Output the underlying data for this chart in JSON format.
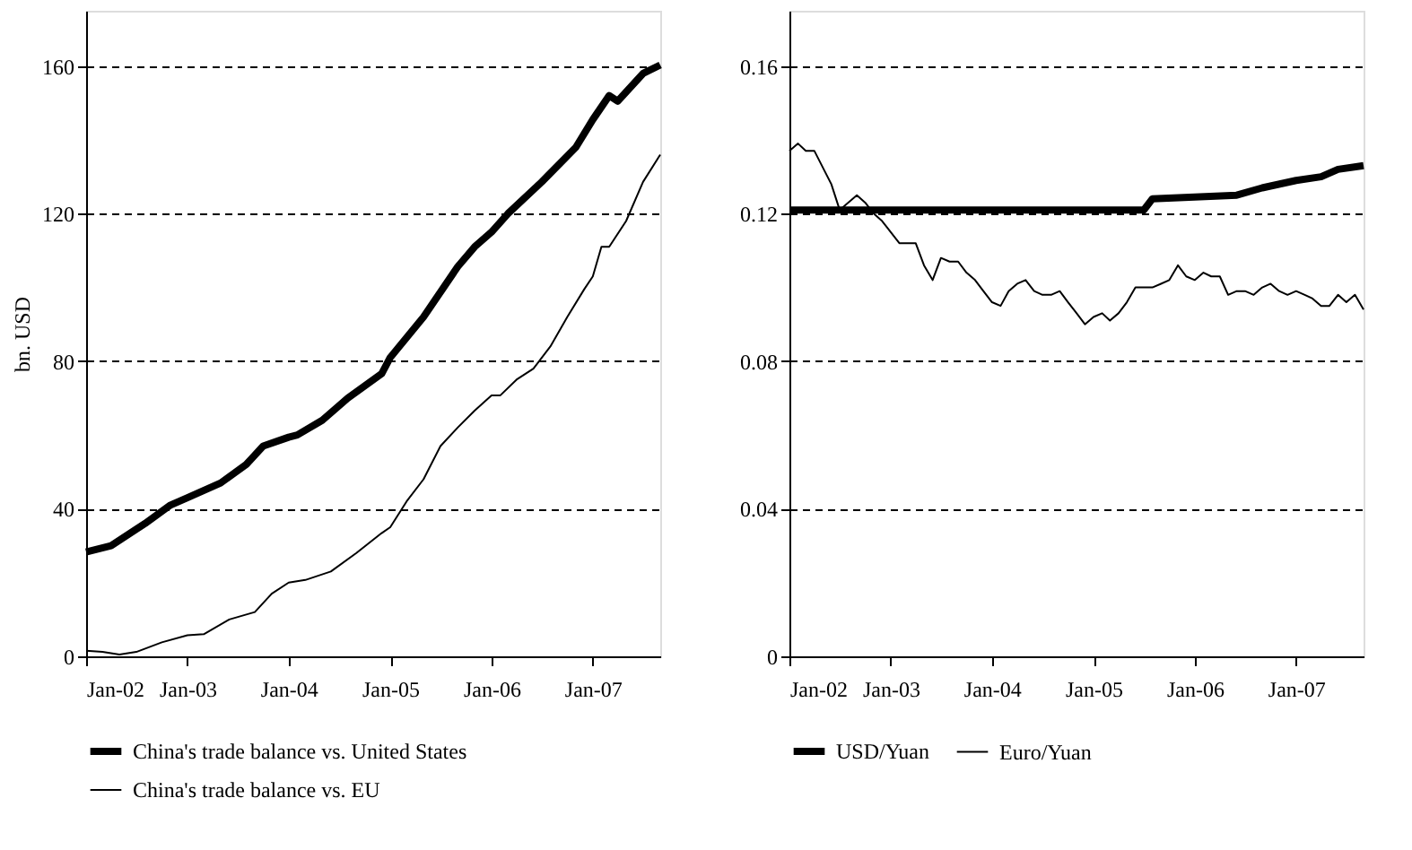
{
  "chart_data": [
    {
      "type": "line",
      "ylabel": "bn. USD",
      "xlim": [
        "2002-01",
        "2007-09"
      ],
      "ylim": [
        0,
        175
      ],
      "yticks": [
        0,
        40,
        80,
        120,
        160
      ],
      "xticks": [
        {
          "value": "2002-01",
          "label": "Jan-02"
        },
        {
          "value": "2003-01",
          "label": "Jan-03"
        },
        {
          "value": "2004-01",
          "label": "Jan-04"
        },
        {
          "value": "2005-01",
          "label": "Jan-05"
        },
        {
          "value": "2006-01",
          "label": "Jan-06"
        },
        {
          "value": "2007-01",
          "label": "Jan-07"
        }
      ],
      "grid": "y",
      "legend": "bottom",
      "line_style": "solid",
      "marker": "none",
      "series": [
        {
          "name": "China's trade balance vs. United States",
          "color": "#000000",
          "x": [
            "2002-01",
            "2002-04",
            "2002-08",
            "2002-11",
            "2003-01",
            "2003-05",
            "2003-08",
            "2003-10",
            "2004-01",
            "2004-02",
            "2004-05",
            "2004-08",
            "2004-12",
            "2005-01",
            "2005-05",
            "2005-09",
            "2005-11",
            "2006-01",
            "2006-03",
            "2006-07",
            "2006-11",
            "2007-01",
            "2007-03",
            "2007-04",
            "2007-07",
            "2007-09"
          ],
          "values": [
            28.3,
            30,
            36,
            41,
            43,
            47,
            52,
            57,
            59.4,
            60,
            64,
            70,
            76.6,
            81,
            92,
            105.6,
            111,
            115,
            120,
            128.6,
            138,
            145.5,
            152,
            150.5,
            158,
            160.3
          ]
        },
        {
          "name": "China's trade balance vs. EU",
          "color": "#000000",
          "x": [
            "2002-01",
            "2002-03",
            "2002-05",
            "2002-07",
            "2002-10",
            "2003-01",
            "2003-03",
            "2003-06",
            "2003-09",
            "2003-11",
            "2004-01",
            "2004-03",
            "2004-06",
            "2004-09",
            "2004-12",
            "2005-01",
            "2005-03",
            "2005-05",
            "2005-07",
            "2005-09",
            "2005-11",
            "2006-01",
            "2006-02",
            "2006-04",
            "2006-06",
            "2006-08",
            "2006-10",
            "2006-12",
            "2007-01",
            "2007-02",
            "2007-03",
            "2007-05",
            "2007-07",
            "2007-09"
          ],
          "values": [
            1.5,
            1.2,
            0.5,
            1.2,
            3.8,
            5.7,
            6,
            10,
            12,
            17,
            20,
            20.7,
            23,
            28,
            33.4,
            35,
            42,
            48,
            57,
            62,
            66.6,
            70.7,
            70.7,
            75,
            78,
            84,
            92,
            99.5,
            103,
            111,
            111,
            118,
            128.6,
            136
          ]
        }
      ]
    },
    {
      "type": "line",
      "xlim": [
        "2002-01",
        "2007-09"
      ],
      "ylim": [
        0,
        0.175
      ],
      "yticks": [
        0,
        0.04,
        0.08,
        0.12,
        0.16
      ],
      "xticks": [
        {
          "value": "2002-01",
          "label": "Jan-02"
        },
        {
          "value": "2003-01",
          "label": "Jan-03"
        },
        {
          "value": "2004-01",
          "label": "Jan-04"
        },
        {
          "value": "2005-01",
          "label": "Jan-05"
        },
        {
          "value": "2006-01",
          "label": "Jan-06"
        },
        {
          "value": "2007-01",
          "label": "Jan-07"
        }
      ],
      "grid": "y",
      "legend": "bottom",
      "line_style": "solid",
      "marker": "none",
      "series": [
        {
          "name": "USD/Yuan",
          "color": "#000000",
          "x": [
            "2002-01",
            "2005-07",
            "2005-08",
            "2006-06",
            "2006-09",
            "2007-01",
            "2007-04",
            "2007-06",
            "2007-09"
          ],
          "values": [
            0.121,
            0.121,
            0.124,
            0.125,
            0.127,
            0.129,
            0.13,
            0.132,
            0.133
          ]
        },
        {
          "name": "Euro/Yuan",
          "color": "#000000",
          "x": [
            "2002-01",
            "2002-02",
            "2002-03",
            "2002-04",
            "2002-06",
            "2002-07",
            "2002-08",
            "2002-09",
            "2002-10",
            "2002-11",
            "2002-12",
            "2003-01",
            "2003-02",
            "2003-04",
            "2003-05",
            "2003-06",
            "2003-07",
            "2003-08",
            "2003-09",
            "2003-10",
            "2003-11",
            "2003-12",
            "2004-01",
            "2004-02",
            "2004-03",
            "2004-04",
            "2004-05",
            "2004-06",
            "2004-07",
            "2004-08",
            "2004-09",
            "2004-10",
            "2004-11",
            "2004-12",
            "2005-01",
            "2005-02",
            "2005-03",
            "2005-04",
            "2005-05",
            "2005-06",
            "2005-07",
            "2005-08",
            "2005-09",
            "2005-10",
            "2005-11",
            "2005-12",
            "2006-01",
            "2006-02",
            "2006-03",
            "2006-04",
            "2006-05",
            "2006-06",
            "2006-07",
            "2006-08",
            "2006-09",
            "2006-10",
            "2006-11",
            "2006-12",
            "2007-01",
            "2007-02",
            "2007-03",
            "2007-04",
            "2007-05",
            "2007-06",
            "2007-07",
            "2007-08",
            "2007-09"
          ],
          "values": [
            0.137,
            0.139,
            0.137,
            0.137,
            0.128,
            0.121,
            0.123,
            0.125,
            0.123,
            0.12,
            0.118,
            0.115,
            0.112,
            0.112,
            0.106,
            0.102,
            0.108,
            0.107,
            0.107,
            0.104,
            0.102,
            0.099,
            0.096,
            0.095,
            0.099,
            0.101,
            0.102,
            0.099,
            0.098,
            0.098,
            0.099,
            0.096,
            0.093,
            0.09,
            0.092,
            0.093,
            0.091,
            0.093,
            0.096,
            0.1,
            0.1,
            0.1,
            0.101,
            0.102,
            0.106,
            0.103,
            0.102,
            0.104,
            0.103,
            0.103,
            0.098,
            0.099,
            0.099,
            0.098,
            0.1,
            0.101,
            0.099,
            0.098,
            0.099,
            0.098,
            0.097,
            0.095,
            0.095,
            0.098,
            0.096,
            0.098,
            0.094
          ]
        }
      ]
    }
  ]
}
